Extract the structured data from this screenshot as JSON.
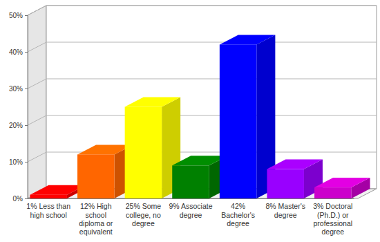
{
  "chart_data": {
    "type": "bar",
    "categories": [
      "1% Less than high school",
      "12% High school diploma or equivalent",
      "25% Some college, no degree",
      "9% Associate degree",
      "42% Bachelor's degree",
      "8% Master's degree",
      "3% Doctoral (Ph.D.) or professional degree"
    ],
    "values": [
      1,
      12,
      25,
      9,
      42,
      8,
      3
    ],
    "colors": [
      "#ff0000",
      "#ff6600",
      "#ffff00",
      "#008000",
      "#0000ff",
      "#9900ff",
      "#cc00cc"
    ],
    "ylim": [
      0,
      50
    ],
    "yticks": [
      {
        "value": 0,
        "label": "0%"
      },
      {
        "value": 10,
        "label": "10%"
      },
      {
        "value": 20,
        "label": "20%"
      },
      {
        "value": 30,
        "label": "30%"
      },
      {
        "value": 40,
        "label": "40%"
      },
      {
        "value": 50,
        "label": "50%"
      }
    ],
    "grid": true
  }
}
